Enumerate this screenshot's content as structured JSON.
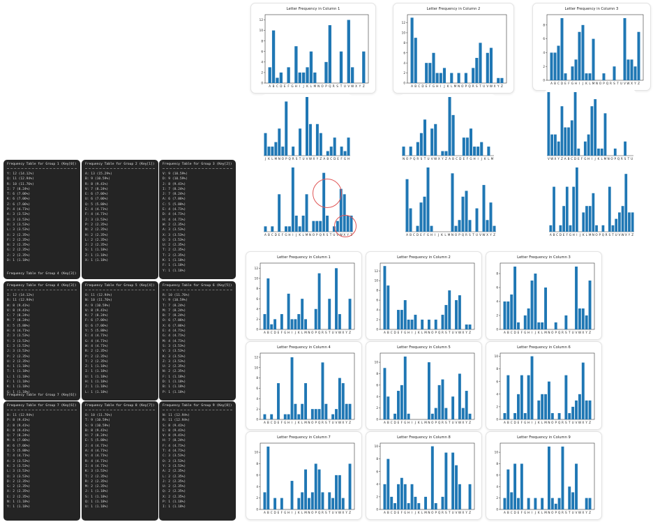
{
  "terminals": [
    {
      "title": "Frequency Table for Group 1 (Key[0])",
      "rows": [
        "Y: 12 (14.12%)",
        "Q: 11 (12.94%)",
        "R: 10 (11.76%)",
        "I: 7 (8.24%)",
        "T: 6 (7.06%)",
        "K: 6 (7.06%)",
        "Z: 6 (7.06%)",
        "P: 4 (4.71%)",
        "A: 3 (3.53%)",
        "H: 3 (3.53%)",
        "O: 3 (3.53%)",
        "L: 3 (3.53%)",
        "X: 2 (2.35%)",
        "F: 2 (2.35%)",
        "N: 2 (2.35%)",
        "G: 2 (2.35%)",
        "J: 2 (2.35%)",
        "D: 1 (1.18%)"
      ],
      "caption": "Frequency Table for Group 4 (Key[3])"
    },
    {
      "title": "Frequency Table for Group 2 (Key[1])",
      "rows": [
        "A: 13 (15.29%)",
        "B: 9 (10.59%)",
        "R: 8 (9.41%)",
        "V: 7 (8.24%)",
        "E: 6 (7.06%)",
        "U: 6 (7.06%)",
        "Q: 5 (5.88%)",
        "E: 4 (4.71%)",
        "F: 4 (4.71%)",
        "J: 3 (3.53%)",
        "P: 2 (2.35%)",
        "N: 2 (2.35%)",
        "H: 2 (2.35%)",
        "L: 2 (2.35%)",
        "J: 2 (2.35%)",
        "S: 1 (1.18%)",
        "Z: 1 (1.18%)",
        "X: 1 (1.18%)"
      ],
      "caption": ""
    },
    {
      "title": "Frequency Table for Group 3 (Key[2])",
      "rows": [
        "V: 9 (10.59%)",
        "D: 9 (10.59%)",
        "J: 8 (9.41%)",
        "I: 7 (8.24%)",
        "J: 7 (8.24%)",
        "A: 6 (7.06%)",
        "C: 5 (5.88%)",
        "E: 4 (4.71%)",
        "D: 4 (4.71%)",
        "H: 4 (4.71%)",
        "W: 2 (2.35%)",
        "A: 3 (3.53%)",
        "X: 3 (3.53%)",
        "Q: 3 (3.53%)",
        "U: 2 (2.35%)",
        "T: 2 (2.35%)",
        "T: 2 (2.35%)",
        "K: 1 (1.18%)",
        "F: 1 (1.18%)",
        "Y: 1 (1.18%)"
      ],
      "caption": ""
    },
    {
      "title": "Frequency Table for Group 4 (Key[3])",
      "rows": [
        "I: 12 (14.12%)",
        "R: 11 (12.94%)",
        "W: 8 (9.41%)",
        "V: 8 (9.41%)",
        "C: 7 (8.24%)",
        "M: 7 (8.24%)",
        "X: 5 (5.88%)",
        "H: 4 (4.71%)",
        "Z: 3 (3.53%)",
        "Y: 3 (3.53%)",
        "E: 3 (3.53%)",
        "J: 3 (3.53%)",
        "P: 2 (2.35%)",
        "U: 2 (2.35%)",
        "A: 1 (1.18%)",
        "T: 1 (1.18%)",
        "L: 1 (1.18%)",
        "F: 1 (1.18%)",
        "K: 1 (1.18%)",
        "G: 1 (1.18%)"
      ],
      "caption": "Frequency Table for Group 7 (Key[6])"
    },
    {
      "title": "Frequency Table for Group 5 (Key[4])",
      "rows": [
        "O: 11 (12.94%)",
        "N: 10 (11.76%)",
        "A: 9 (10.59%)",
        "V: 8 (9.41%)",
        "K: 7 (8.24%)",
        "F: 6 (7.06%)",
        "Q: 6 (7.06%)",
        "Y: 5 (5.88%)",
        "E: 4 (4.71%)",
        "G: 4 (4.71%)",
        "W: 4 (4.71%)",
        "R: 2 (2.35%)",
        "P: 2 (2.35%)",
        "T: 2 (2.35%)",
        "Z: 1 (1.18%)",
        "I: 1 (1.18%)",
        "U: 1 (1.18%)",
        "H: 1 (1.18%)",
        "J: 1 (1.18%)",
        "L: 1 (1.18%)"
      ],
      "caption": ""
    },
    {
      "title": "Frequency Table for Group 6 (Key[5])",
      "rows": [
        "R: 10 (11.76%)",
        "Y: 9 (10.59%)",
        "T: 7 (8.24%)",
        "M: 7 (8.24%)",
        "B: 7 (8.24%)",
        "O: 6 (7.06%)",
        "X: 6 (7.06%)",
        "E: 4 (4.71%)",
        "G: 4 (4.71%)",
        "M: 4 (4.71%)",
        "S: 3 (3.53%)",
        "V: 3 (3.53%)",
        "K: 3 (3.53%)",
        "Z: 3 (3.53%)",
        "U: 2 (2.35%)",
        "N: 2 (2.35%)",
        "F: 1 (1.18%)",
        "D: 1 (1.18%)",
        "B: 1 (1.18%)",
        "P: 1 (1.18%)"
      ],
      "caption": ""
    },
    {
      "title": "Frequency Table for Group 7 (Key[6])",
      "rows": [
        "B: 11 (12.94%)",
        "P: 8 (9.41%)",
        "J: 8 (9.41%)",
        "R: 8 (9.41%)",
        "Q: 7 (8.24%)",
        "M: 6 (7.06%)",
        "W: 6 (7.06%)",
        "I: 5 (5.88%)",
        "T: 4 (4.71%)",
        "A: 3 (3.53%)",
        "K: 3 (3.53%)",
        "L: 3 (3.53%)",
        "O: 3 (3.53%)",
        "D: 2 (2.35%)",
        "G: 2 (2.35%)",
        "X: 2 (2.35%)",
        "E: 2 (2.35%)",
        "N: 1 (1.18%)",
        "Y: 1 (1.18%)"
      ],
      "caption": ""
    },
    {
      "title": "Frequency Table for Group 8 (Key[7])",
      "rows": [
        "O: 10 (11.76%)",
        "T: 9 (10.59%)",
        "S: 9 (10.59%)",
        "B: 8 (9.41%)",
        "U: 7 (8.24%)",
        "E: 5 (5.88%)",
        "J: 4 (4.71%)",
        "A: 4 (4.71%)",
        "V: 4 (4.71%)",
        "R: 4 (4.71%)",
        "I: 4 (4.71%)",
        "K: 3 (3.53%)",
        "T: 2 (2.35%)",
        "R: 2 (2.35%)",
        "M: 2 (2.35%)",
        "J: 1 (1.18%)",
        "S: 1 (1.18%)",
        "Q: 1 (1.18%)",
        "U: 1 (1.18%)"
      ],
      "caption": ""
    },
    {
      "title": "Frequency Table for Group 9 (Key[8])",
      "rows": [
        "N: 11 (12.94%)",
        "R: 11 (12.94%)",
        "S: 8 (9.41%)",
        "E: 8 (9.41%)",
        "V: 8 (9.41%)",
        "H: 7 (8.24%)",
        "F: 4 (4.71%)",
        "T: 4 (4.71%)",
        "C: 3 (3.53%)",
        "O: 3 (3.53%)",
        "Y: 3 (3.53%)",
        "A: 2 (2.35%)",
        "L: 2 (2.35%)",
        "J: 2 (2.35%)",
        "U: 2 (2.35%)",
        "Q: 2 (2.35%)",
        "X: 2 (2.35%)",
        "P: 1 (1.18%)",
        "I: 1 (1.18%)"
      ],
      "caption": ""
    }
  ],
  "chart_data": [
    {
      "id": "c1",
      "type": "bar",
      "title": "Letter Frequency in Column 1",
      "categories": [
        "A",
        "B",
        "C",
        "D",
        "E",
        "F",
        "G",
        "H",
        "I",
        "J",
        "K",
        "L",
        "M",
        "N",
        "O",
        "P",
        "Q",
        "R",
        "S",
        "T",
        "U",
        "V",
        "W",
        "X",
        "Y",
        "Z"
      ],
      "values": [
        3,
        10,
        1,
        2,
        0,
        3,
        0,
        7,
        2,
        2,
        3,
        6,
        2,
        0,
        0,
        4,
        11,
        0,
        0,
        6,
        0,
        12,
        3,
        0,
        0,
        6
      ],
      "yticks": [
        0,
        2,
        4,
        6,
        8,
        10,
        12
      ],
      "ylim": [
        0,
        13
      ],
      "color": "#1f77b4"
    },
    {
      "id": "c2",
      "type": "bar",
      "title": "Letter Frequency in Column 2",
      "categories": [
        "A",
        "B",
        "C",
        "D",
        "E",
        "F",
        "G",
        "H",
        "I",
        "J",
        "K",
        "L",
        "M",
        "N",
        "O",
        "P",
        "Q",
        "R",
        "S",
        "T",
        "U",
        "V",
        "W",
        "X",
        "Y",
        "Z"
      ],
      "values": [
        13,
        9,
        0,
        0,
        4,
        4,
        6,
        2,
        2,
        3,
        0,
        2,
        0,
        2,
        0,
        2,
        0,
        3,
        5,
        8,
        0,
        6,
        7,
        0,
        1,
        1
      ],
      "yticks": [
        0,
        2,
        4,
        6,
        8,
        10,
        12
      ],
      "ylim": [
        0,
        13.6
      ],
      "color": "#1f77b4"
    },
    {
      "id": "c3",
      "type": "bar",
      "title": "Letter Frequency in Column 3",
      "categories": [
        "A",
        "B",
        "C",
        "D",
        "E",
        "F",
        "G",
        "H",
        "I",
        "J",
        "K",
        "L",
        "M",
        "N",
        "O",
        "P",
        "Q",
        "R",
        "S",
        "T",
        "U",
        "V",
        "W",
        "X",
        "Y",
        "Z"
      ],
      "values": [
        4,
        4,
        5,
        9,
        1,
        0,
        2,
        3,
        7,
        8,
        1,
        1,
        6,
        0,
        0,
        1,
        0,
        0,
        2,
        0,
        0,
        9,
        3,
        3,
        2,
        7
      ],
      "yticks": [
        0,
        2,
        4,
        6,
        8
      ],
      "ylim": [
        0,
        9.5
      ],
      "color": "#1f77b4"
    },
    {
      "id": "c4",
      "type": "bar",
      "title": "Letter Frequency in Column 4",
      "categories": [
        "A",
        "B",
        "C",
        "D",
        "E",
        "F",
        "G",
        "H",
        "I",
        "J",
        "K",
        "L",
        "M",
        "N",
        "O",
        "P",
        "Q",
        "R",
        "S",
        "T",
        "U",
        "V",
        "W",
        "X",
        "Y",
        "Z"
      ],
      "values": [
        1,
        0,
        1,
        0,
        7,
        0,
        1,
        1,
        12,
        3,
        1,
        3,
        7,
        0,
        2,
        2,
        2,
        11,
        3,
        0,
        1,
        2,
        8,
        7,
        3,
        3
      ],
      "yticks": [
        0,
        2,
        4,
        6,
        8,
        10,
        12
      ],
      "ylim": [
        0,
        12.8
      ],
      "color": "#1f77b4"
    },
    {
      "id": "c5",
      "type": "bar",
      "title": "Letter Frequency in Column 5",
      "categories": [
        "A",
        "B",
        "C",
        "D",
        "E",
        "F",
        "G",
        "H",
        "I",
        "J",
        "K",
        "L",
        "M",
        "N",
        "O",
        "P",
        "Q",
        "R",
        "S",
        "T",
        "U",
        "V",
        "W",
        "X",
        "Y",
        "Z"
      ],
      "values": [
        9,
        4,
        0,
        1,
        5,
        6,
        11,
        1,
        0,
        0,
        0,
        0,
        0,
        10,
        1,
        2,
        6,
        7,
        2,
        0,
        4,
        0,
        8,
        2,
        5,
        1
      ],
      "yticks": [
        0,
        2,
        4,
        6,
        8,
        10
      ],
      "ylim": [
        0,
        11.6
      ],
      "color": "#1f77b4"
    },
    {
      "id": "c6",
      "type": "bar",
      "title": "Letter Frequency in Column 6",
      "categories": [
        "A",
        "B",
        "C",
        "D",
        "E",
        "F",
        "G",
        "H",
        "I",
        "J",
        "K",
        "L",
        "M",
        "N",
        "O",
        "P",
        "Q",
        "R",
        "S",
        "T",
        "U",
        "V",
        "W",
        "X",
        "Y",
        "Z"
      ],
      "values": [
        1,
        7,
        0,
        1,
        4,
        7,
        1,
        7,
        10,
        0,
        3,
        4,
        4,
        6,
        1,
        0,
        1,
        0,
        7,
        1,
        2,
        3,
        4,
        9,
        3,
        3
      ],
      "yticks": [
        0,
        2,
        4,
        6,
        8,
        10
      ],
      "ylim": [
        0,
        10.5
      ],
      "color": "#1f77b4"
    },
    {
      "id": "c7",
      "type": "bar",
      "title": "Letter Frequency in Column 7",
      "categories": [
        "A",
        "B",
        "C",
        "D",
        "E",
        "F",
        "G",
        "H",
        "I",
        "J",
        "K",
        "L",
        "M",
        "N",
        "O",
        "P",
        "Q",
        "R",
        "S",
        "T",
        "U",
        "V",
        "W",
        "X",
        "Y",
        "Z"
      ],
      "values": [
        3,
        11,
        0,
        2,
        0,
        2,
        0,
        0,
        5,
        0,
        2,
        3,
        7,
        2,
        3,
        8,
        7,
        3,
        0,
        3,
        2,
        6,
        6,
        2,
        0,
        8
      ],
      "yticks": [
        0,
        2,
        4,
        6,
        8,
        10
      ],
      "ylim": [
        0,
        11.6
      ],
      "color": "#1f77b4"
    },
    {
      "id": "c8",
      "type": "bar",
      "title": "Letter Frequency in Column 8",
      "categories": [
        "A",
        "B",
        "C",
        "D",
        "E",
        "F",
        "G",
        "H",
        "I",
        "J",
        "K",
        "L",
        "M",
        "N",
        "O",
        "P",
        "Q",
        "R",
        "S",
        "T",
        "U",
        "V",
        "W",
        "X",
        "Y",
        "Z"
      ],
      "values": [
        4,
        8,
        2,
        1,
        4,
        5,
        4,
        1,
        4,
        2,
        1,
        0,
        2,
        0,
        10,
        1,
        0,
        2,
        9,
        0,
        9,
        7,
        4,
        0,
        0,
        4
      ],
      "yticks": [
        0,
        2,
        4,
        6,
        8,
        10
      ],
      "ylim": [
        0,
        10.5
      ],
      "color": "#1f77b4"
    },
    {
      "id": "c9",
      "type": "bar",
      "title": "Letter Frequency in Column 9",
      "categories": [
        "A",
        "B",
        "C",
        "D",
        "E",
        "F",
        "G",
        "H",
        "I",
        "J",
        "K",
        "L",
        "M",
        "N",
        "O",
        "P",
        "Q",
        "R",
        "S",
        "T",
        "U",
        "V",
        "W",
        "X",
        "Y",
        "Z"
      ],
      "values": [
        2,
        7,
        3,
        8,
        2,
        8,
        0,
        2,
        0,
        2,
        0,
        2,
        0,
        11,
        2,
        1,
        2,
        11,
        0,
        4,
        3,
        8,
        0,
        0,
        2,
        2
      ],
      "yticks": [
        0,
        2,
        4,
        6,
        8,
        10
      ],
      "ylim": [
        0,
        11.6
      ],
      "color": "#1f77b4"
    }
  ],
  "shifted_strips": [
    {
      "labels": [
        "J",
        "K",
        "L",
        "M",
        "N",
        "O",
        "P",
        "Q",
        "R",
        "S",
        "T",
        "U",
        "V",
        "W",
        "X",
        "Y",
        "Z",
        "A",
        "B",
        "C",
        "D",
        "E",
        "F",
        "G",
        "H"
      ],
      "values": [
        5,
        2,
        2,
        3,
        6,
        2,
        12,
        0,
        2,
        0,
        6,
        0,
        13,
        7,
        0,
        7,
        5,
        0,
        1,
        2,
        4,
        0,
        2,
        1,
        4
      ]
    },
    {
      "labels": [
        "N",
        "O",
        "P",
        "Q",
        "R",
        "S",
        "T",
        "U",
        "V",
        "W",
        "X",
        "Y",
        "Z",
        "A",
        "B",
        "C",
        "D",
        "E",
        "F",
        "G",
        "H",
        "I",
        "J",
        "K",
        "L",
        "M"
      ],
      "values": [
        2,
        0,
        2,
        0,
        3,
        5,
        8,
        0,
        6,
        7,
        0,
        1,
        1,
        13,
        9,
        0,
        0,
        4,
        4,
        6,
        2,
        2,
        3,
        0,
        2,
        0
      ]
    },
    {
      "labels": [
        "V",
        "W",
        "X",
        "Y",
        "Z",
        "A",
        "B",
        "C",
        "D",
        "E",
        "F",
        "G",
        "H",
        "I",
        "J",
        "K",
        "L",
        "M",
        "N",
        "O",
        "P",
        "Q",
        "R",
        "S",
        "T",
        "U"
      ],
      "values": [
        9,
        3,
        3,
        2,
        7,
        4,
        4,
        5,
        9,
        1,
        0,
        2,
        3,
        7,
        8,
        1,
        1,
        6,
        0,
        0,
        1,
        0,
        0,
        2,
        0,
        0
      ]
    },
    {
      "labels": [
        "A",
        "B",
        "C",
        "D",
        "E",
        "F",
        "G",
        "H",
        "I",
        "J",
        "K",
        "L",
        "M",
        "N",
        "O",
        "P",
        "Q",
        "R",
        "S",
        "T",
        "U",
        "V",
        "W",
        "X",
        "Y",
        "Z"
      ],
      "values": [
        1,
        0,
        1,
        0,
        7,
        0,
        1,
        1,
        12,
        3,
        1,
        3,
        7,
        0,
        2,
        2,
        2,
        11,
        3,
        0,
        1,
        2,
        8,
        7,
        3,
        3
      ]
    },
    {
      "labels": [
        "A",
        "B",
        "C",
        "D",
        "E",
        "F",
        "G",
        "H",
        "I",
        "J",
        "K",
        "L",
        "M",
        "N",
        "O",
        "P",
        "Q",
        "R",
        "S",
        "T",
        "U",
        "V",
        "W",
        "X",
        "Y",
        "Z"
      ],
      "values": [
        9,
        4,
        0,
        1,
        5,
        6,
        11,
        1,
        0,
        0,
        0,
        0,
        0,
        10,
        1,
        2,
        6,
        7,
        2,
        0,
        4,
        0,
        8,
        2,
        5,
        1
      ]
    },
    {
      "labels": [
        "A",
        "B",
        "C",
        "D",
        "E",
        "F",
        "G",
        "H",
        "I",
        "J",
        "K",
        "L",
        "M",
        "N",
        "O",
        "P",
        "Q",
        "R",
        "S",
        "T",
        "U",
        "V",
        "W",
        "X",
        "Y",
        "Z"
      ],
      "values": [
        1,
        7,
        0,
        1,
        4,
        7,
        1,
        7,
        10,
        0,
        3,
        4,
        4,
        6,
        1,
        0,
        1,
        0,
        7,
        1,
        2,
        3,
        4,
        9,
        3,
        3
      ]
    }
  ]
}
